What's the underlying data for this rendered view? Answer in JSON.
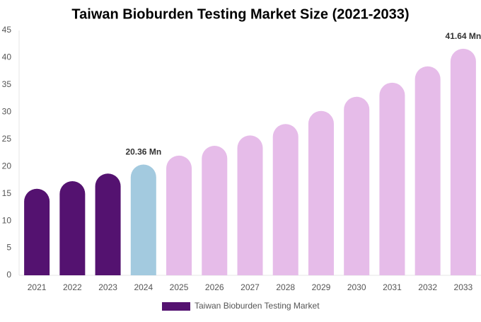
{
  "chart_data": {
    "type": "bar",
    "title": "Taiwan Bioburden Testing Market Size (2021-2033)",
    "categories": [
      "2021",
      "2022",
      "2023",
      "2024",
      "2025",
      "2026",
      "2027",
      "2028",
      "2029",
      "2030",
      "2031",
      "2032",
      "2033"
    ],
    "series": [
      {
        "name": "Taiwan Bioburden Testing Market",
        "color": "#541270",
        "values": [
          15.9,
          17.3,
          18.7,
          20.36,
          22.0,
          23.8,
          25.7,
          27.8,
          30.2,
          32.8,
          35.4,
          38.4,
          41.64
        ],
        "colors": [
          "#541270",
          "#541270",
          "#541270",
          "#a3cadf",
          "#e6bce9",
          "#e6bce9",
          "#e6bce9",
          "#e6bce9",
          "#e6bce9",
          "#e6bce9",
          "#e6bce9",
          "#e6bce9",
          "#e6bce9"
        ],
        "value_labels": [
          null,
          null,
          null,
          "20.36 Mn",
          null,
          null,
          null,
          null,
          null,
          null,
          null,
          null,
          "41.64 Mn"
        ]
      }
    ],
    "ylim": [
      0,
      45
    ],
    "yticks": [
      0,
      5,
      10,
      15,
      20,
      25,
      30,
      35,
      40,
      45
    ],
    "grid": false,
    "legend": "bottom"
  }
}
